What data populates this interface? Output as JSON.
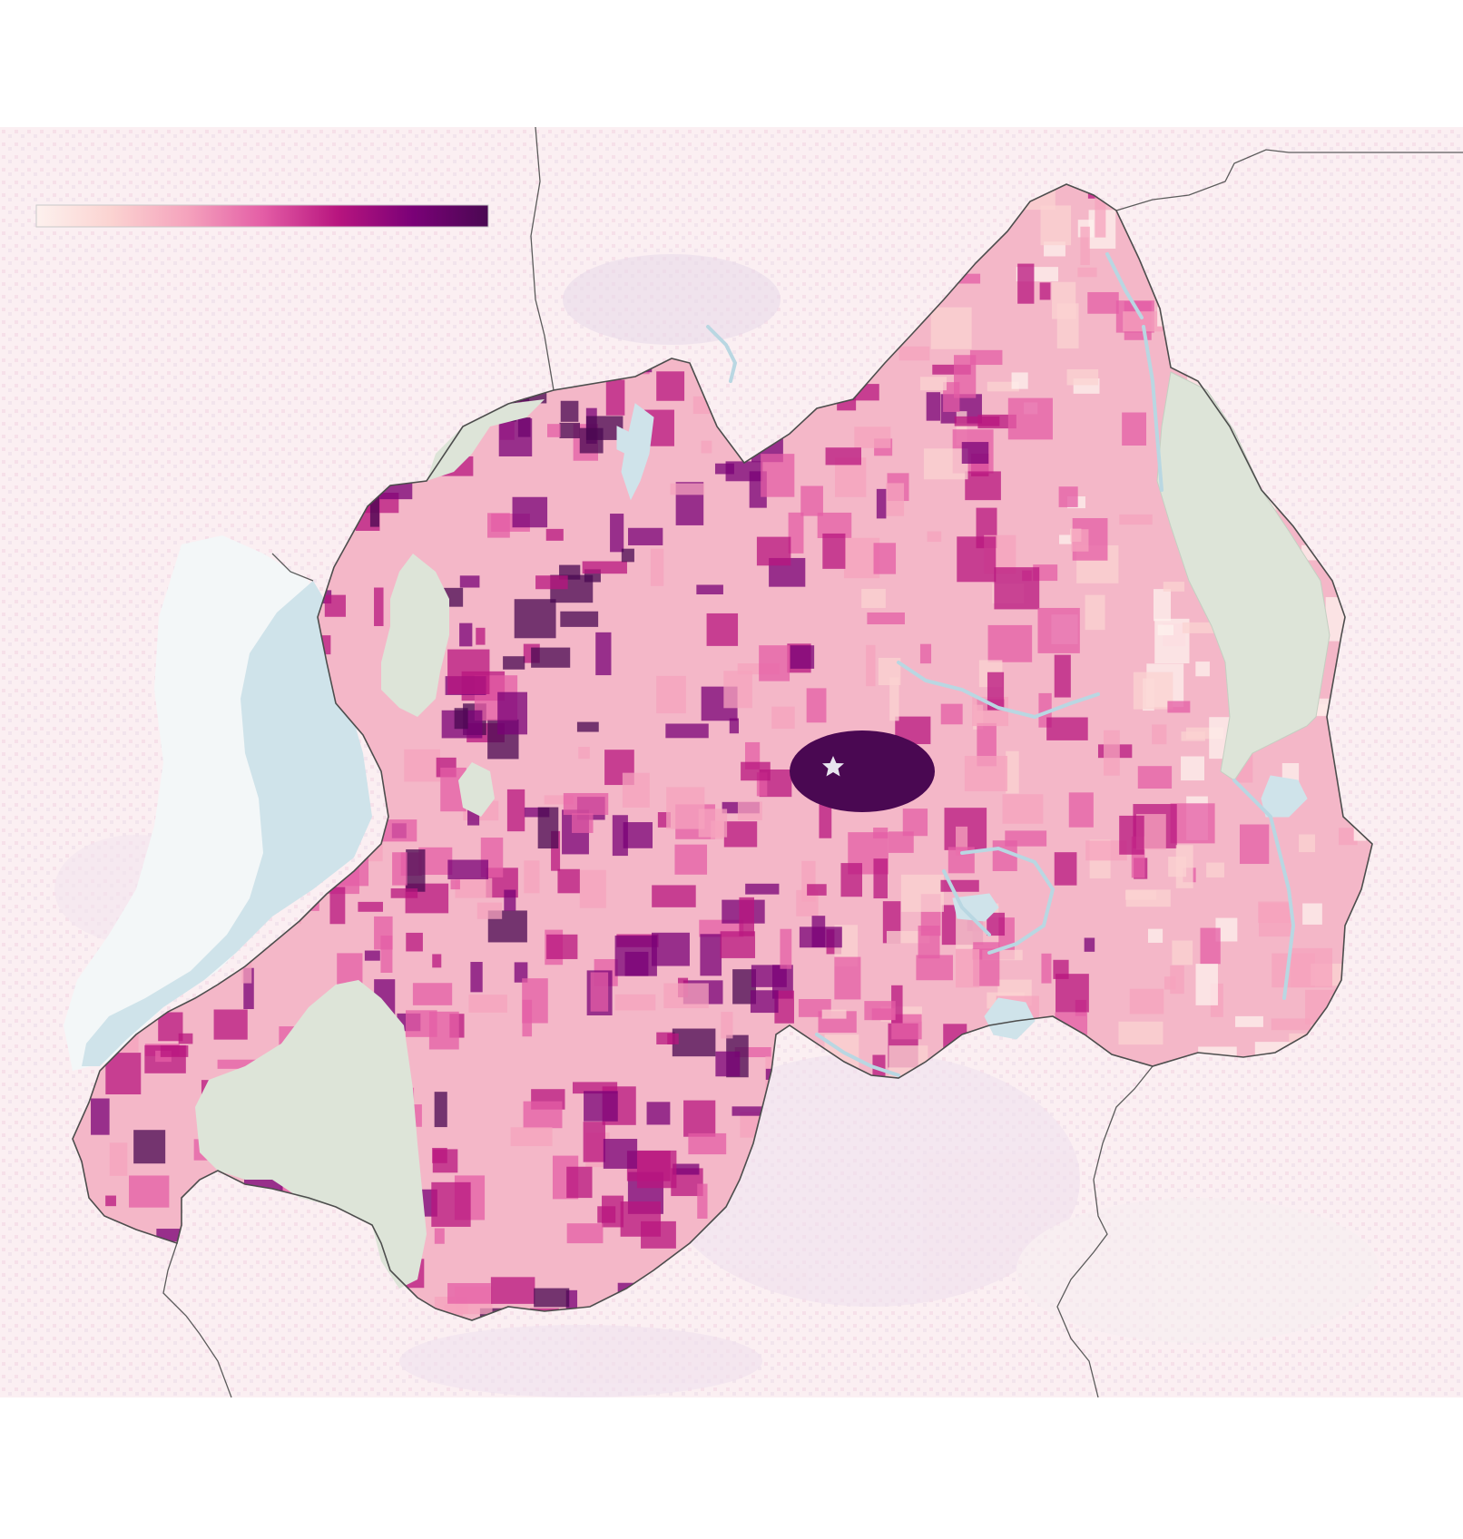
{
  "legend": {
    "type": "continuous-color-scale",
    "colors": [
      "#fdf1ee",
      "#fbd3d1",
      "#f5a3bd",
      "#e45ea6",
      "#b8157f",
      "#7a0177",
      "#4a0852"
    ]
  },
  "colors": {
    "background": "#ffffff",
    "outside_density": "#fbf3f4",
    "water": "#cfe3ea",
    "protected_area": "#dde4d8",
    "border": "#5b5b5b"
  },
  "markers": {
    "capital_icon": "star-icon"
  }
}
